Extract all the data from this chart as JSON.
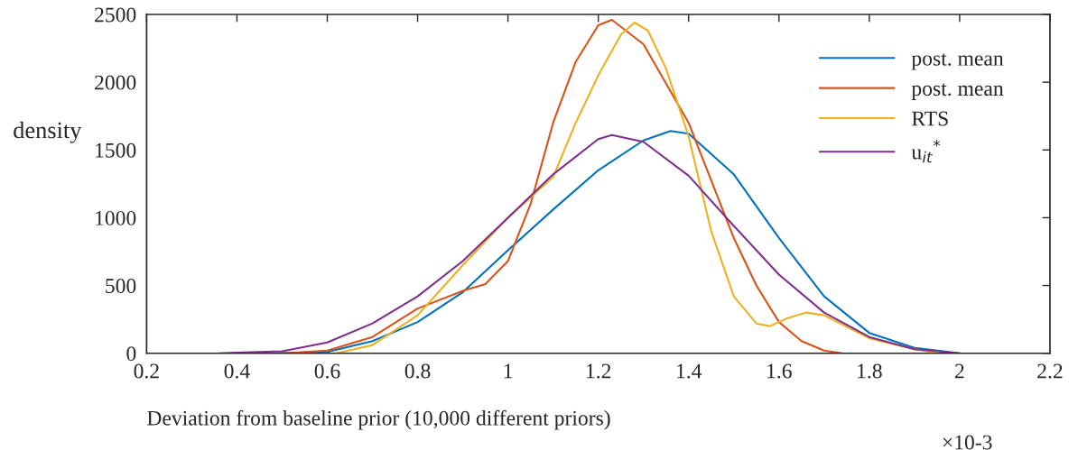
{
  "chart_data": {
    "type": "line",
    "xlabel": "Deviation from baseline prior (10,000 different priors)",
    "ylabel": "density",
    "annotations": [
      "×10-3"
    ],
    "xlim": [
      0.2,
      2.2
    ],
    "xticks": [
      0.2,
      0.4,
      0.6,
      0.8,
      1,
      1.2,
      1.4,
      1.6,
      1.8,
      2,
      2.2
    ],
    "ylim": [
      0,
      2500
    ],
    "yticks": [
      0,
      500,
      1000,
      1500,
      2000,
      2500
    ],
    "grid": false,
    "legend": "top right",
    "marker": "none",
    "line_style": "solid",
    "series": [
      {
        "name": "post. mean",
        "color": "#0072bd",
        "x": [
          0.48,
          0.6,
          0.7,
          0.8,
          0.9,
          1.0,
          1.1,
          1.2,
          1.3,
          1.36,
          1.4,
          1.5,
          1.6,
          1.7,
          1.8,
          1.9,
          2.0
        ],
        "values": [
          0,
          10,
          90,
          230,
          450,
          760,
          1060,
          1350,
          1570,
          1640,
          1620,
          1320,
          850,
          420,
          150,
          40,
          0
        ]
      },
      {
        "name": "post. mean",
        "color": "#d95319",
        "x": [
          0.5,
          0.6,
          0.7,
          0.8,
          0.9,
          0.95,
          1.0,
          1.05,
          1.1,
          1.15,
          1.2,
          1.23,
          1.3,
          1.4,
          1.5,
          1.55,
          1.6,
          1.65,
          1.7,
          1.74
        ],
        "values": [
          0,
          20,
          120,
          330,
          460,
          510,
          680,
          1100,
          1700,
          2150,
          2420,
          2460,
          2280,
          1700,
          850,
          500,
          230,
          90,
          20,
          0
        ]
      },
      {
        "name": "RTS",
        "color": "#edb120",
        "x": [
          0.62,
          0.7,
          0.8,
          0.9,
          1.0,
          1.1,
          1.15,
          1.2,
          1.25,
          1.28,
          1.31,
          1.35,
          1.4,
          1.45,
          1.5,
          1.55,
          1.58,
          1.62,
          1.66,
          1.7,
          1.8,
          1.9,
          1.95
        ],
        "values": [
          0,
          60,
          280,
          650,
          1000,
          1300,
          1700,
          2050,
          2350,
          2440,
          2380,
          2100,
          1600,
          900,
          420,
          220,
          200,
          260,
          300,
          280,
          110,
          30,
          0
        ]
      },
      {
        "name": "u$_{it}$$^{*}$",
        "color": "#7e2f8e",
        "x": [
          0.36,
          0.5,
          0.6,
          0.7,
          0.8,
          0.9,
          1.0,
          1.1,
          1.2,
          1.23,
          1.3,
          1.4,
          1.5,
          1.6,
          1.7,
          1.8,
          1.9,
          2.0
        ],
        "values": [
          0,
          15,
          80,
          220,
          420,
          680,
          1000,
          1320,
          1580,
          1610,
          1560,
          1310,
          940,
          580,
          300,
          120,
          30,
          0
        ]
      }
    ]
  }
}
